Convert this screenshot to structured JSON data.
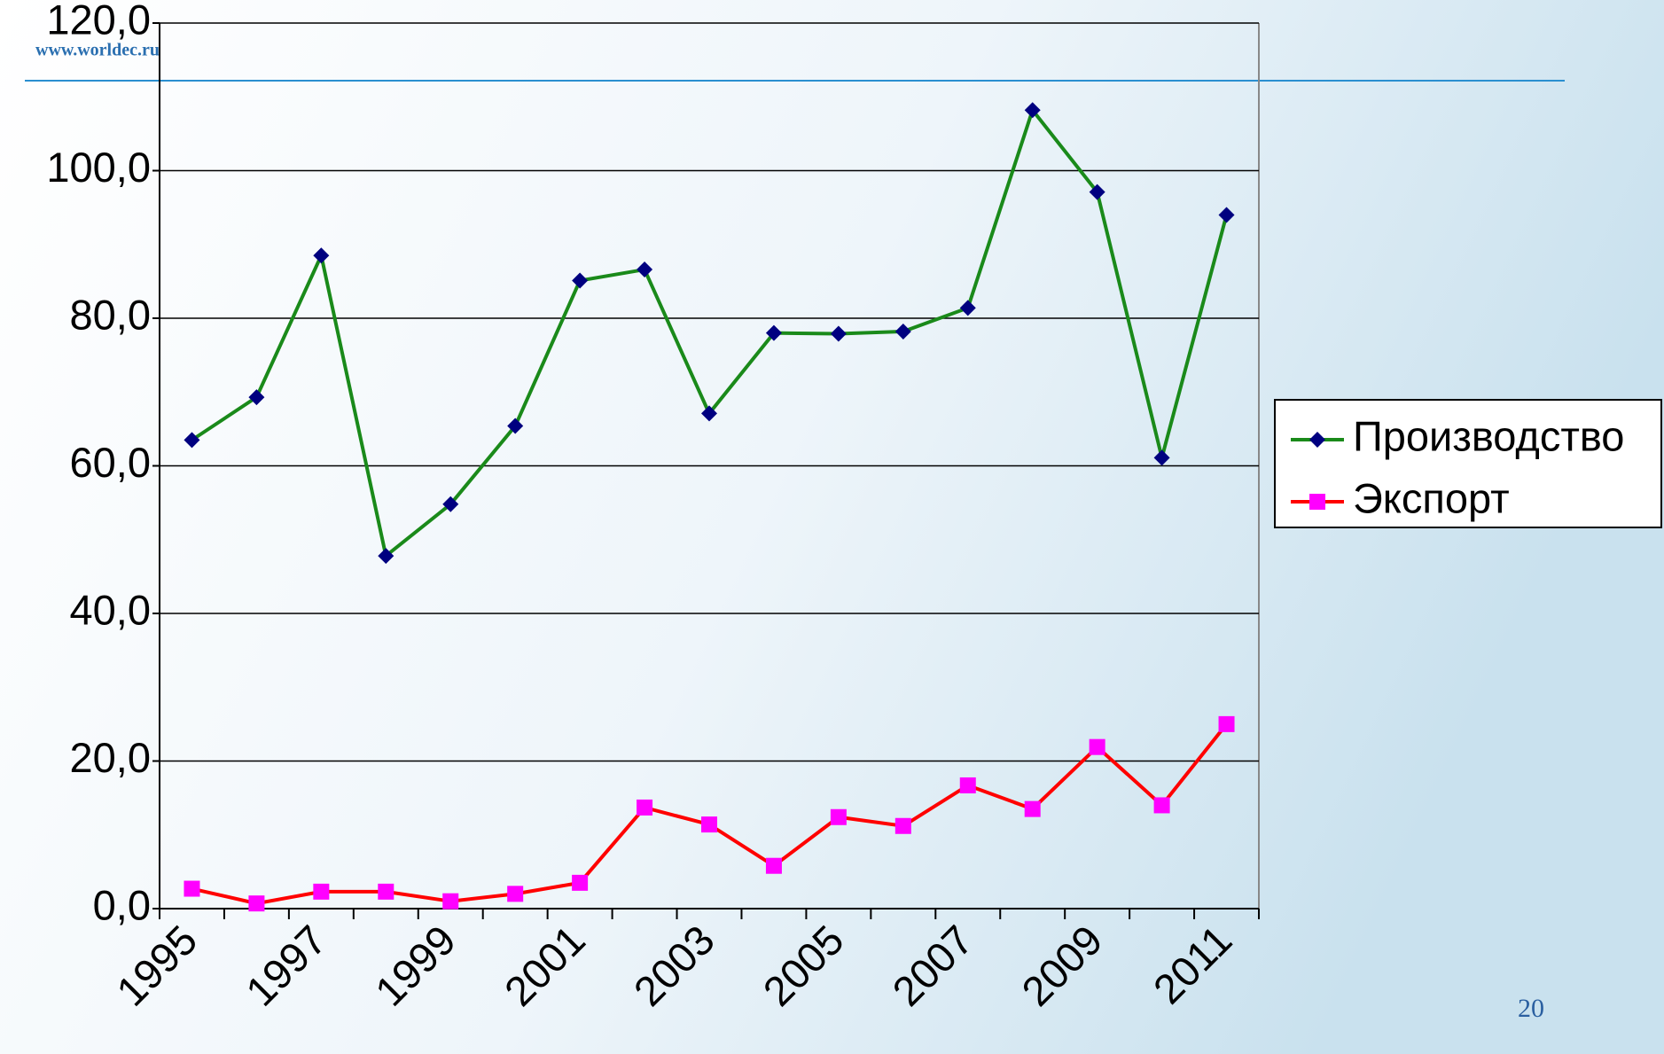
{
  "site": "www.worldec.ru",
  "page_number": 20,
  "chart_data": {
    "type": "line",
    "categories": [
      "1995",
      null,
      "1997",
      null,
      "1999",
      null,
      "2001",
      null,
      "2003",
      null,
      "2005",
      null,
      "2007",
      null,
      "2009",
      null,
      "2011"
    ],
    "series": [
      {
        "name": "Производство",
        "color": "#1a8a1a",
        "marker": "diamond",
        "marker_color": "#000080",
        "values": [
          63.5,
          69.3,
          88.5,
          47.8,
          54.8,
          65.4,
          85.1,
          86.6,
          67.1,
          78.0,
          77.9,
          78.2,
          81.4,
          108.2,
          97.1,
          61.1,
          94.0
        ]
      },
      {
        "name": "Экспорт",
        "color": "#ff0000",
        "marker": "square",
        "marker_color": "#ff00ff",
        "values": [
          2.7,
          0.7,
          2.3,
          2.3,
          1.0,
          2.0,
          3.5,
          13.7,
          11.4,
          5.8,
          12.4,
          11.2,
          16.7,
          13.5,
          21.9,
          14.0,
          25.0
        ]
      }
    ],
    "ylim": [
      0,
      120
    ],
    "yticks": [
      {
        "value": 0,
        "label": "0,0"
      },
      {
        "value": 20,
        "label": "20,0"
      },
      {
        "value": 40,
        "label": "40,0"
      },
      {
        "value": 60,
        "label": "60,0"
      },
      {
        "value": 80,
        "label": "80,0"
      },
      {
        "value": 100,
        "label": "100,0"
      },
      {
        "value": 120,
        "label": "120,0"
      }
    ],
    "grid": true,
    "legend": "right"
  }
}
